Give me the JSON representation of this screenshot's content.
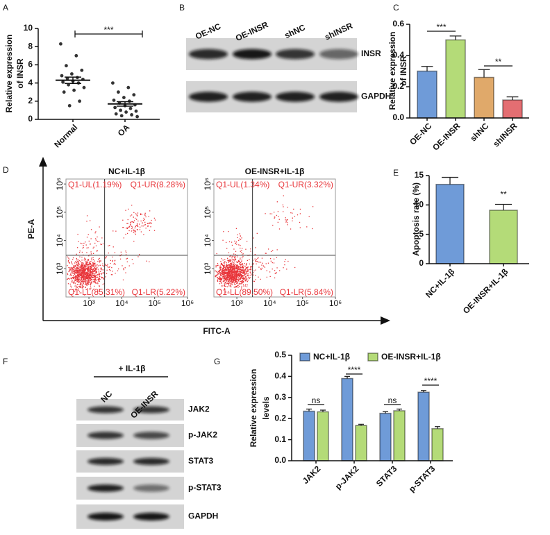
{
  "chart_data": [
    {
      "panel": "A",
      "type": "dot",
      "ylabel": [
        "Relative expression",
        "of INSR"
      ],
      "categories": [
        "Normal",
        "OA"
      ],
      "points": [
        [
          8.3,
          7.0,
          5.9,
          5.4,
          5.0,
          4.8,
          4.6,
          4.5,
          4.4,
          4.2,
          4.1,
          4.0,
          3.8,
          3.5,
          3.2,
          3.0,
          2.0,
          1.5
        ],
        [
          4.0,
          3.5,
          3.0,
          2.7,
          2.4,
          2.1,
          2.0,
          1.8,
          1.6,
          1.5,
          1.3,
          1.2,
          1.0,
          0.9,
          0.8,
          0.6,
          0.5,
          0.4,
          0.3
        ]
      ],
      "means": [
        4.3,
        1.7
      ],
      "errors": [
        0.35,
        0.25
      ],
      "color": "#333333",
      "ylim": [
        0,
        10
      ],
      "yticks": [
        0,
        2,
        4,
        6,
        8,
        10
      ],
      "annotations": [
        "***"
      ]
    },
    {
      "panel": "C",
      "type": "bar",
      "ylabel": [
        "Relative expression",
        "of INSR"
      ],
      "categories": [
        "OE-NC",
        "OE-INSR",
        "shNC",
        "shINSR"
      ],
      "values": [
        0.3,
        0.5,
        0.26,
        0.115
      ],
      "errors": [
        0.03,
        0.025,
        0.05,
        0.02
      ],
      "colors": [
        "#6f9bd8",
        "#b4db78",
        "#e0a96a",
        "#e46e72"
      ],
      "ylim": [
        0,
        0.6
      ],
      "yticks": [
        {
          "value": 0,
          "label": "0.0"
        },
        0.2,
        0.4,
        0.6
      ],
      "annotations": [
        "***",
        "**"
      ]
    },
    {
      "panel": "D",
      "type": "flow-cytometry",
      "xlabel": "FITC-A",
      "ylabel": "PE-A",
      "xscale": "log",
      "yscale": "log",
      "xlim": [
        200,
        1000000
      ],
      "ylim": [
        100,
        1500000
      ],
      "gate": [
        3000,
        3000
      ],
      "color": "#e8353a",
      "xticks": [
        {
          "value": 1000,
          "label": "10³"
        },
        {
          "value": 10000,
          "label": "10⁴"
        },
        {
          "value": 100000,
          "label": "10⁵"
        },
        {
          "value": 1000000,
          "label": "10⁶"
        }
      ],
      "yticks": [
        {
          "value": 1000,
          "label": "10³"
        },
        {
          "value": 10000,
          "label": "10⁴"
        },
        {
          "value": 100000,
          "label": "10⁵"
        },
        {
          "value": 1000000,
          "label": "10⁶"
        }
      ],
      "plots": [
        {
          "title": "NC+IL-1β",
          "quadrants": [
            "Q1-UL(1.19%)",
            "Q1-UR(8.28%)",
            "Q1-LL(85.31%)",
            "Q1-LR(5.22%)"
          ]
        },
        {
          "title": "OE-INSR+IL-1β",
          "quadrants": [
            "Q1-UL(1.34%)",
            "Q1-UR(3.32%)",
            "Q1-LL(89.50%)",
            "Q1-LR(5.84%)"
          ]
        }
      ]
    },
    {
      "panel": "E",
      "type": "bar",
      "ylabel": [
        "Apoptosis rate (%)"
      ],
      "categories": [
        "NC+IL-1β",
        "OE-INSR+IL-1β"
      ],
      "values": [
        13.5,
        9.1
      ],
      "errors": [
        1.2,
        1.0
      ],
      "colors": [
        "#6f9bd8",
        "#b4db78"
      ],
      "ylim": [
        0,
        15
      ],
      "yticks": [
        0,
        5,
        10,
        15
      ],
      "annotations": [
        "**"
      ]
    },
    {
      "panel": "G",
      "type": "grouped-bar",
      "ylabel": [
        "Relative expression",
        "levels"
      ],
      "categories": [
        "JAK2",
        "p-JAK2",
        "STAT3",
        "p-STAT3"
      ],
      "series": [
        {
          "name": "NC+IL-1β",
          "color": "#6f9bd8",
          "values": [
            0.235,
            0.39,
            0.225,
            0.325
          ],
          "errors": [
            0.01,
            0.01,
            0.008,
            0.008
          ]
        },
        {
          "name": "OE-INSR+IL-1β",
          "color": "#b4db78",
          "values": [
            0.232,
            0.167,
            0.237,
            0.152
          ],
          "errors": [
            0.008,
            0.006,
            0.008,
            0.01
          ]
        }
      ],
      "ylim": [
        0,
        0.5
      ],
      "yticks": [
        {
          "value": 0,
          "label": "0.0"
        },
        0.1,
        0.2,
        0.3,
        0.4,
        0.5
      ],
      "annotations": [
        "ns",
        "****",
        "ns",
        "****"
      ]
    }
  ],
  "blots": [
    {
      "panel": "B",
      "lanes": [
        "OE-NC",
        "OE-INSR",
        "shNC",
        "shINSR"
      ],
      "bands": [
        "INSR",
        "GAPDH"
      ]
    },
    {
      "panel": "F",
      "treatment": "+ IL-1β",
      "lanes": [
        "NC",
        "OE-INSR"
      ],
      "bands": [
        "JAK2",
        "p-JAK2",
        "STAT3",
        "p-STAT3",
        "GAPDH"
      ]
    }
  ]
}
